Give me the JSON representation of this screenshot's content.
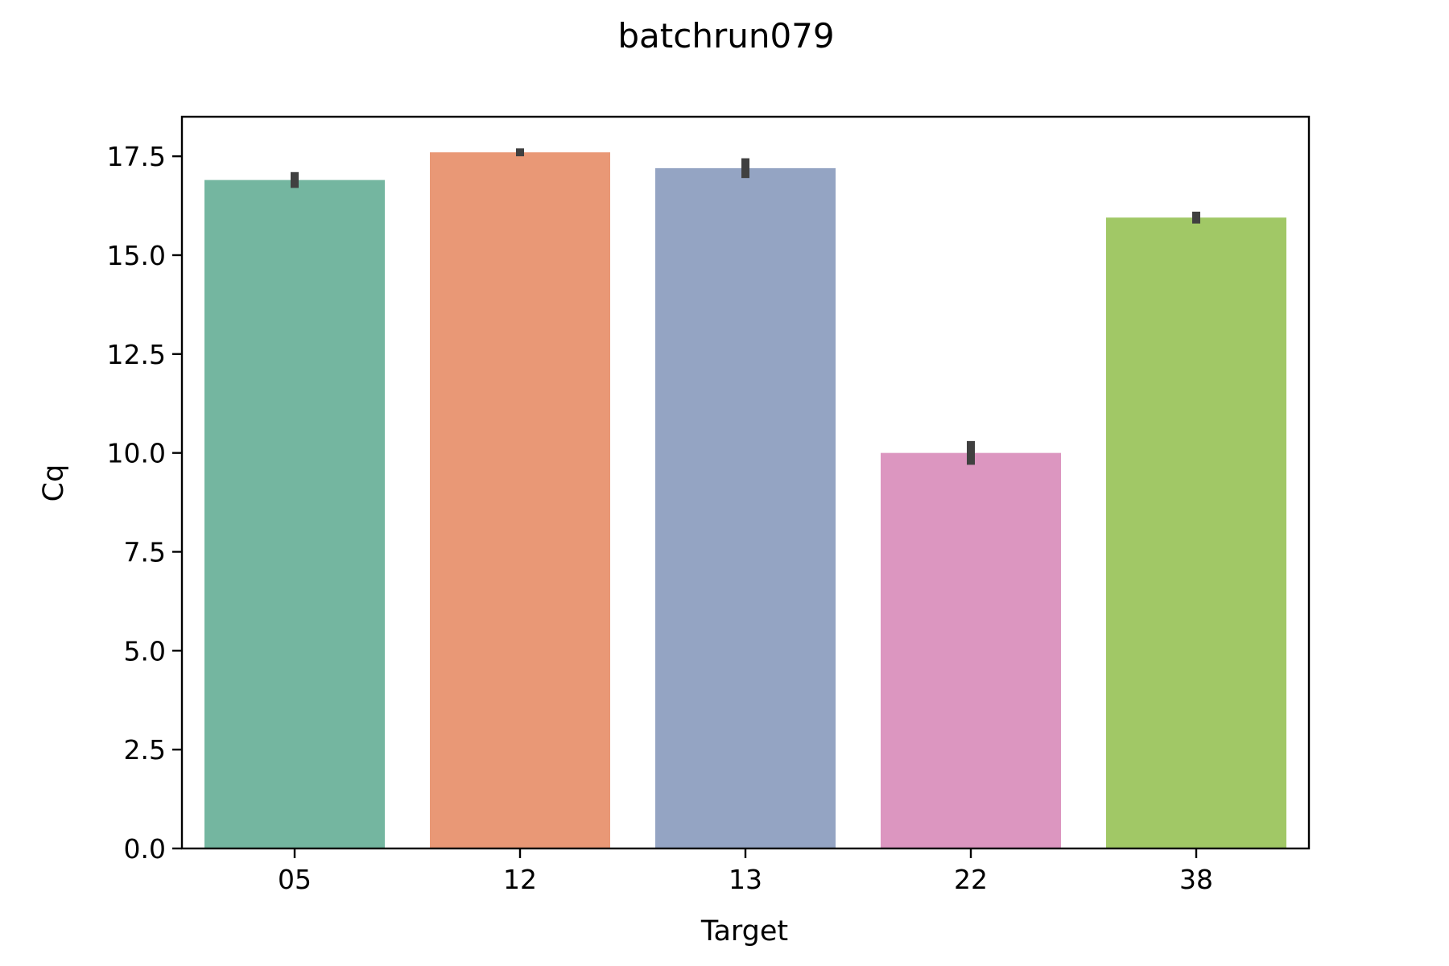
{
  "chart_data": {
    "type": "bar",
    "title": "batchrun079",
    "xlabel": "Target",
    "ylabel": "Cq",
    "categories": [
      "05",
      "12",
      "13",
      "22",
      "38"
    ],
    "values": [
      16.9,
      17.6,
      17.2,
      10.0,
      15.95
    ],
    "error_low": [
      16.7,
      17.5,
      16.95,
      9.7,
      15.8
    ],
    "error_high": [
      17.1,
      17.7,
      17.45,
      10.3,
      16.1
    ],
    "colors": [
      "#74b6a0",
      "#e99876",
      "#94a4c3",
      "#dc96c0",
      "#a1c866"
    ],
    "error_color": "#404040",
    "ylim": [
      0,
      18.5
    ],
    "yticks": [
      "0.0",
      "2.5",
      "5.0",
      "7.5",
      "10.0",
      "12.5",
      "15.0",
      "17.5"
    ],
    "grid": false
  }
}
